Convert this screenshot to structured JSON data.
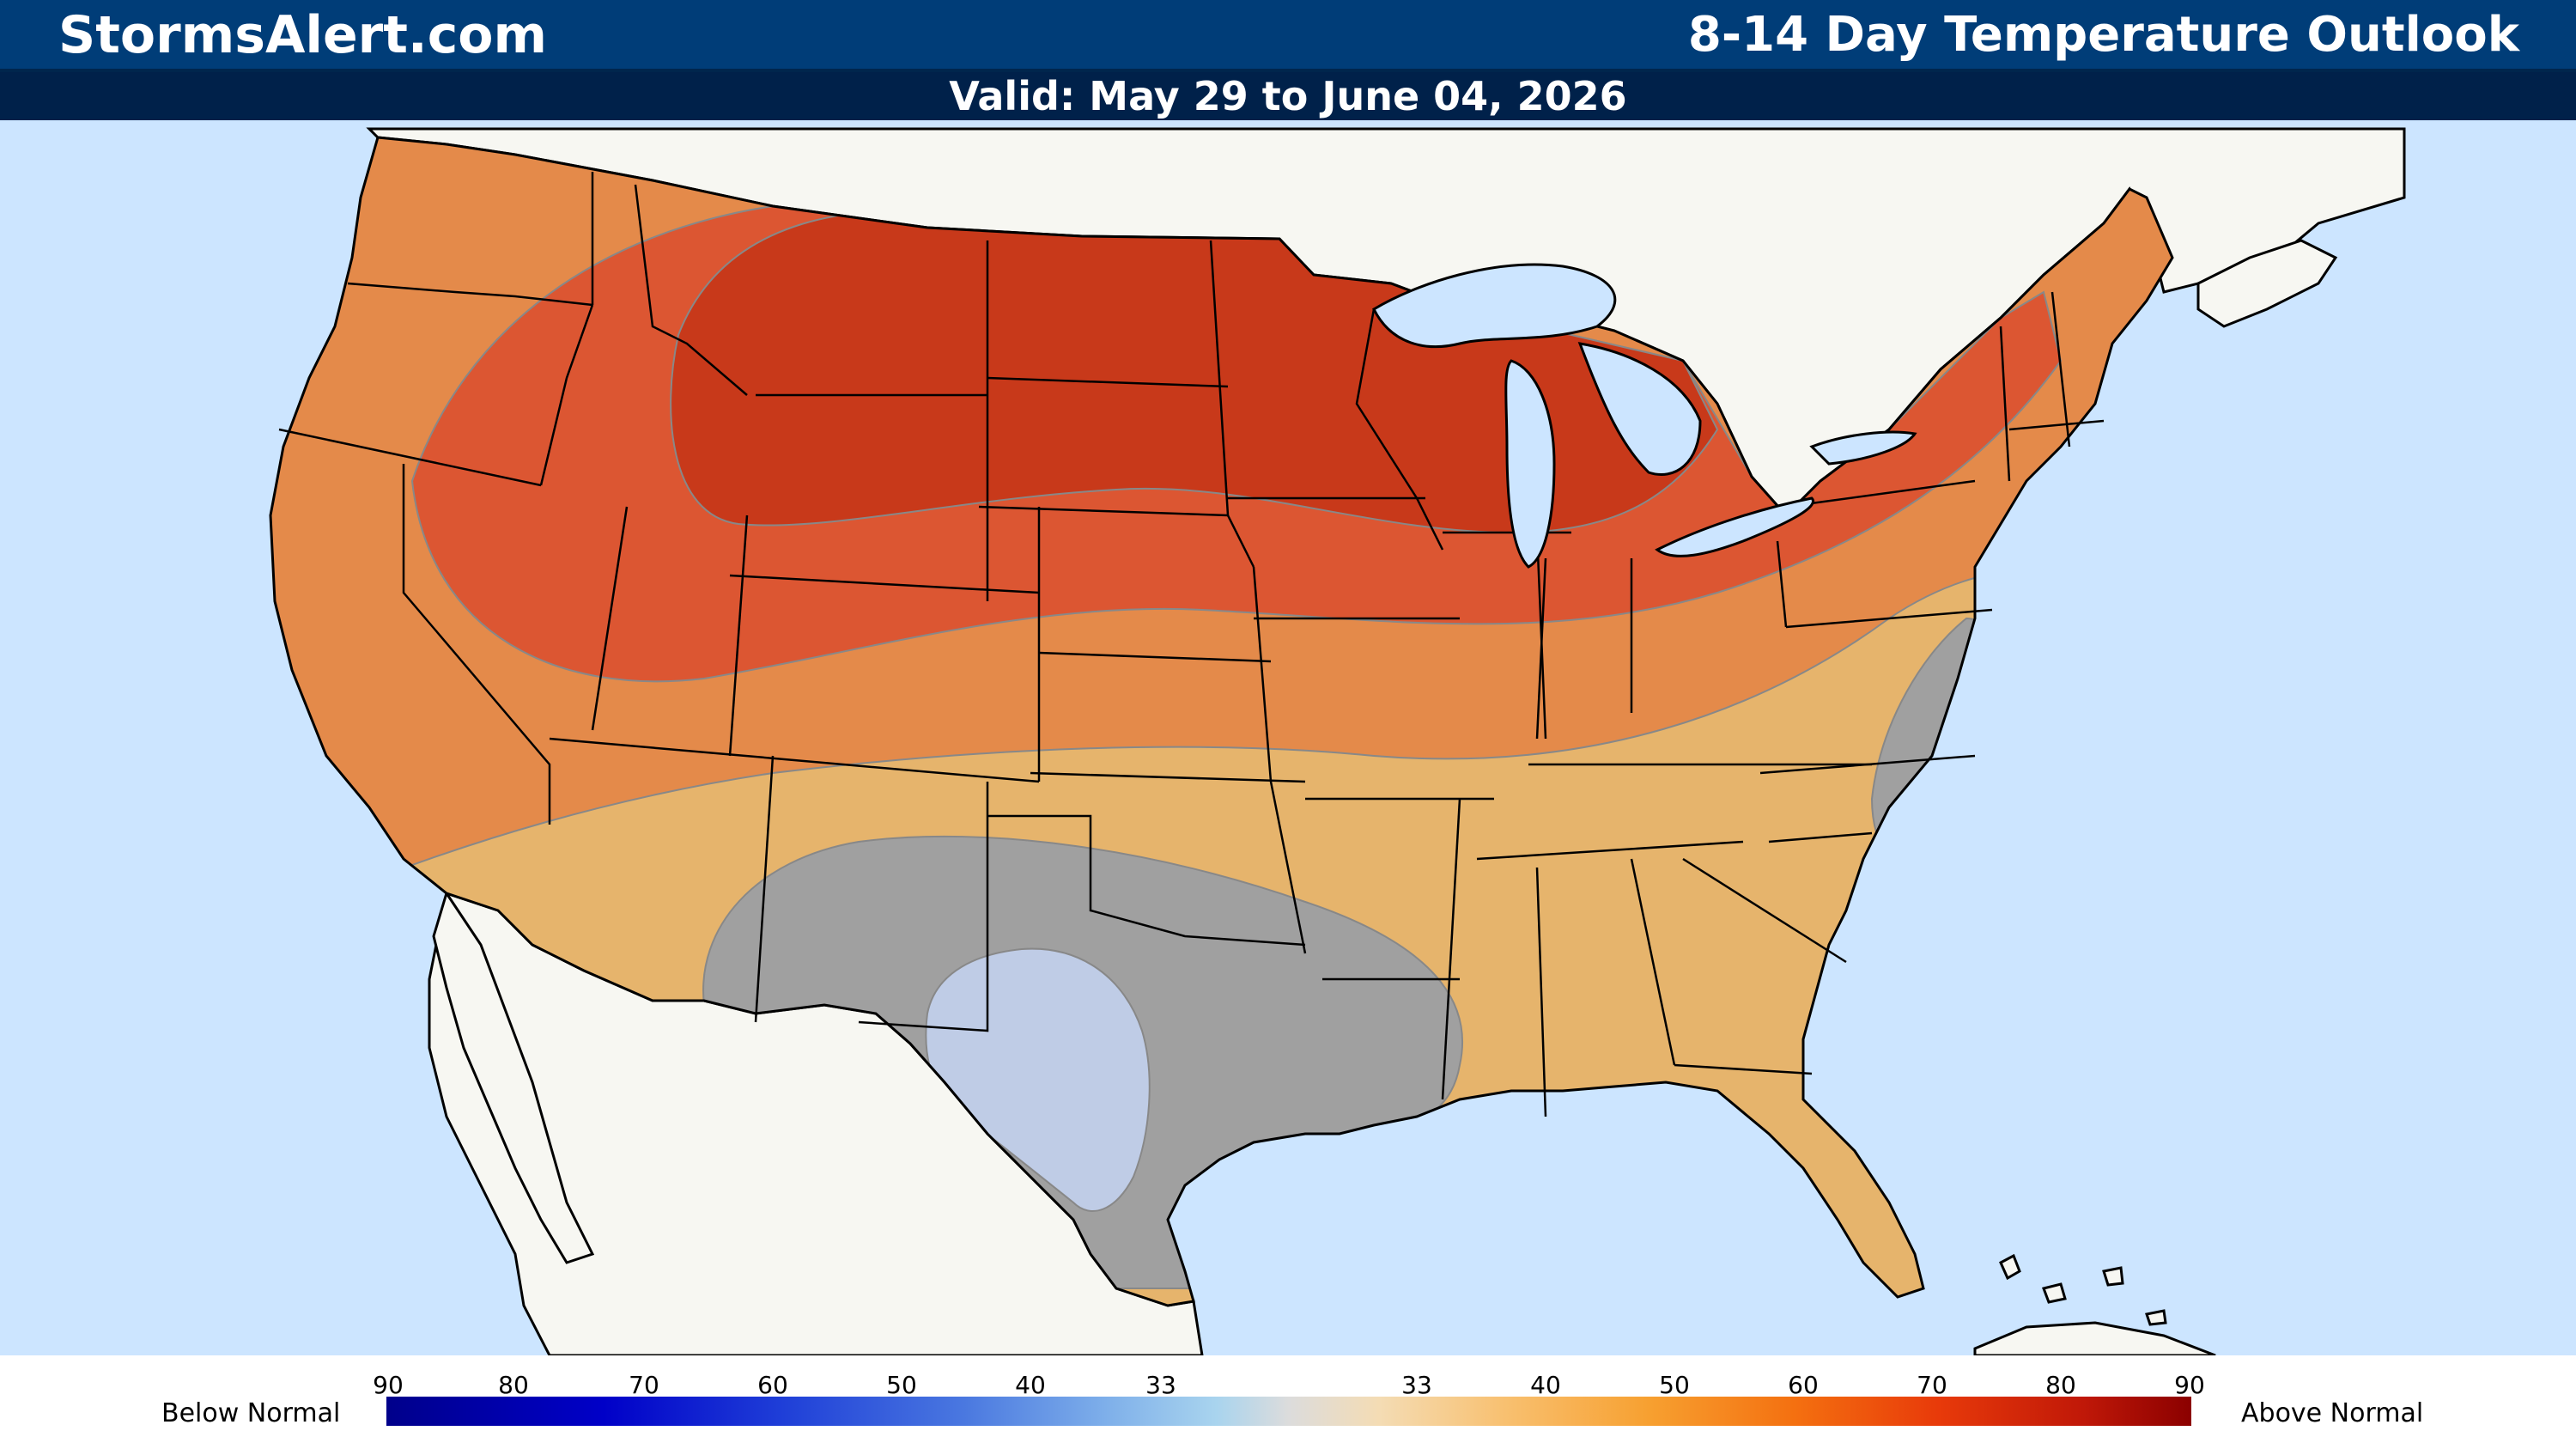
{
  "header": {
    "site_title": "StormsAlert.com",
    "outlook_title": "8-14 Day Temperature Outlook",
    "valid": "Valid: May 29 to June 04, 2026"
  },
  "legend": {
    "below_label": "Below Normal",
    "above_label": "Above Normal",
    "below_ticks": [
      "90",
      "80",
      "70",
      "60",
      "50",
      "40",
      "33"
    ],
    "above_ticks": [
      "33",
      "40",
      "50",
      "60",
      "70",
      "80",
      "90"
    ]
  },
  "categories": {
    "above_80_90": "#c8391a",
    "above_70_80": "#dc5632",
    "above_60_70": "#e48a4a",
    "above_50_60": "#e6b46c",
    "near_normal": "#a0a0a0",
    "below_33_40": "#bfcce6"
  },
  "colors": {
    "ocean": "#cce5ff",
    "land": "#f7f7f2",
    "header_bg": "#003d78",
    "subheader_bg": "#00214a"
  }
}
